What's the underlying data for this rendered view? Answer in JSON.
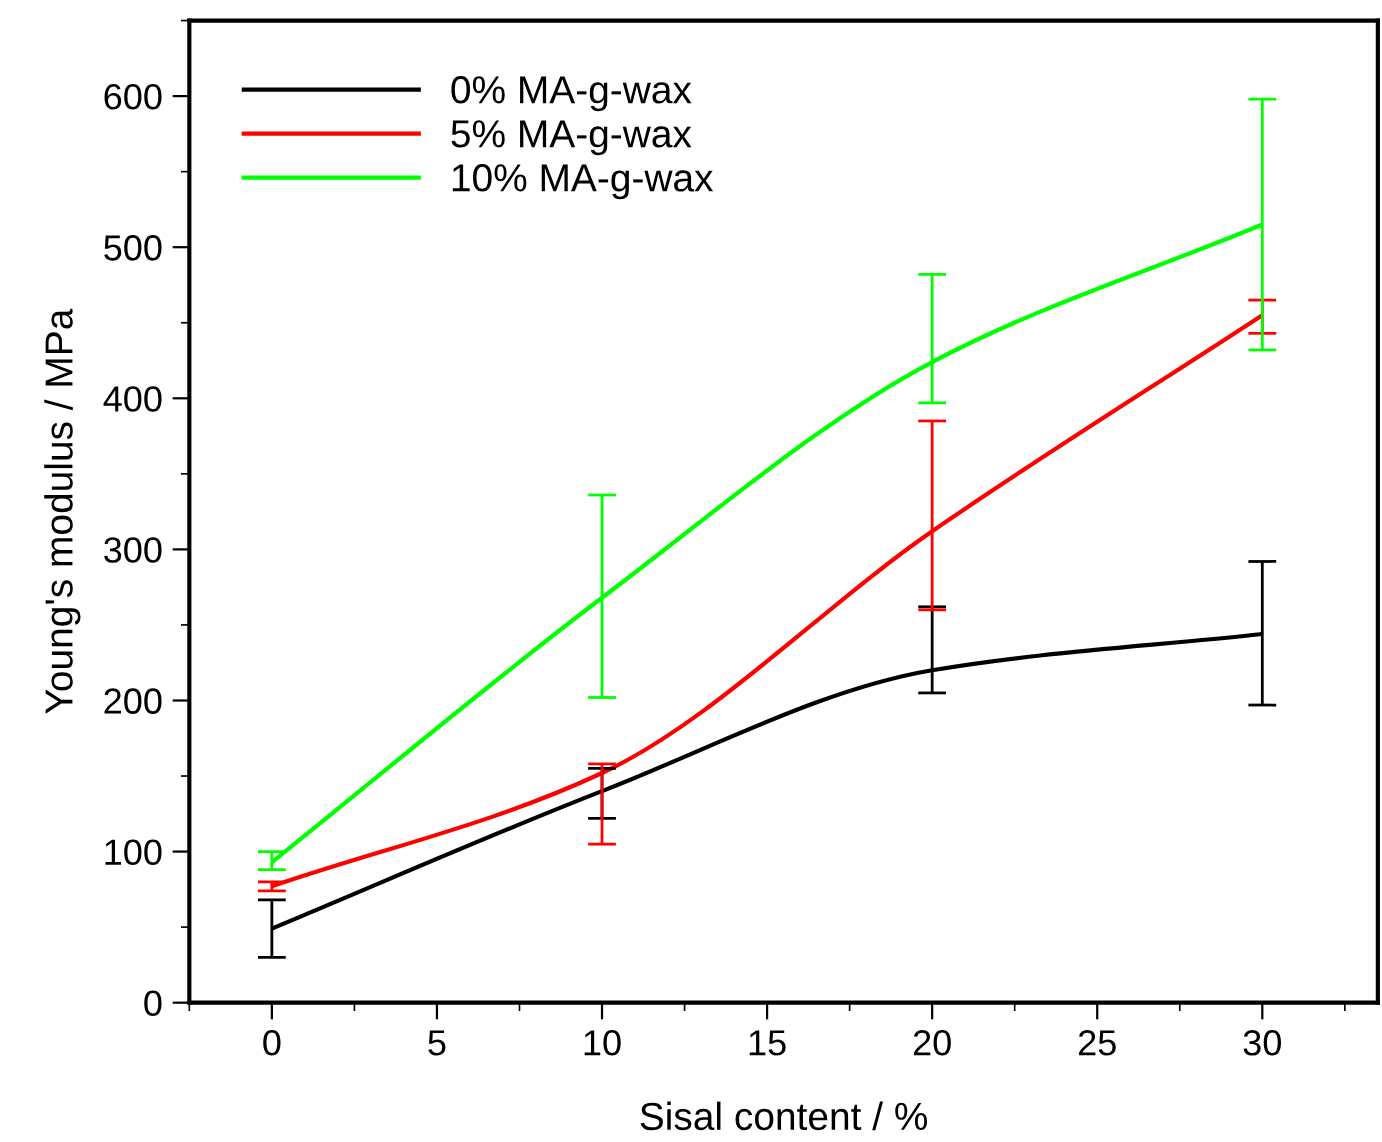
{
  "chart_data": {
    "type": "line",
    "xlabel": "Sisal content / %",
    "ylabel": "Young's modulus / MPa",
    "x": [
      0,
      10,
      20,
      30
    ],
    "series": [
      {
        "name": "0% MA-g-wax",
        "color": "#000000",
        "values": [
          49,
          140,
          220,
          244
        ],
        "errors": [
          [
            30,
            68
          ],
          [
            122,
            155
          ],
          [
            205,
            262
          ],
          [
            197,
            292
          ]
        ]
      },
      {
        "name": "5% MA-g-wax",
        "color": "#ff0000",
        "values": [
          77,
          152,
          312,
          455
        ],
        "errors": [
          [
            74,
            80
          ],
          [
            105,
            158
          ],
          [
            260,
            385
          ],
          [
            443,
            465
          ]
        ]
      },
      {
        "name": "10% MA-g-wax",
        "color": "#00ff00",
        "values": [
          93,
          268,
          424,
          515
        ],
        "errors": [
          [
            88,
            100
          ],
          [
            202,
            336
          ],
          [
            397,
            482
          ],
          [
            432,
            598
          ]
        ]
      }
    ],
    "xlim": [
      -2.5,
      33.5
    ],
    "xticks": [
      0,
      5,
      10,
      15,
      20,
      25,
      30
    ],
    "ylim": [
      0,
      650
    ],
    "yticks": [
      0,
      100,
      200,
      300,
      400,
      500,
      600
    ],
    "grid": false,
    "legend": "top left",
    "marker": "none",
    "line_style": "solid"
  }
}
